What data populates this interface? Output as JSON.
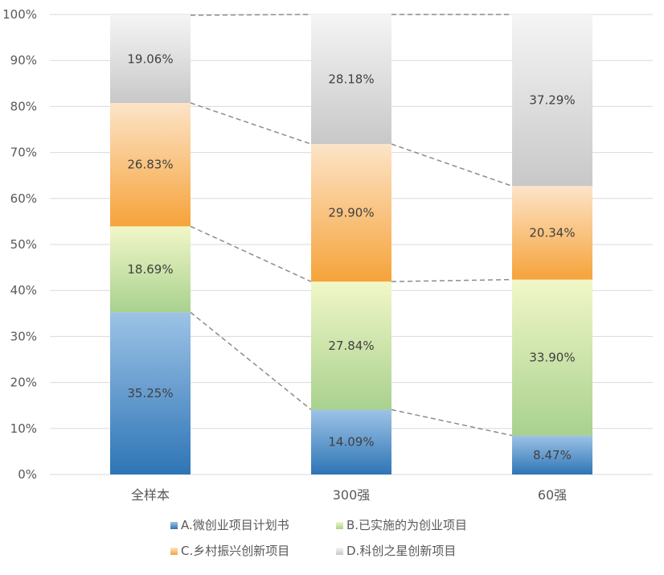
{
  "chart_data": {
    "type": "bar",
    "stacked": true,
    "percent": true,
    "categories": [
      "全样本",
      "300强",
      "60强"
    ],
    "series": [
      {
        "name": "A.微创业项目计划书",
        "values": [
          35.25,
          14.09,
          8.47
        ],
        "labels": [
          "35.25%",
          "14.09%",
          "8.47%"
        ],
        "color_light": "#9dc3e6",
        "color_dark": "#2e75b6"
      },
      {
        "name": "B.已实施的为创业项目",
        "values": [
          18.69,
          27.84,
          33.9
        ],
        "labels": [
          "18.69%",
          "27.84%",
          "33.90%"
        ],
        "color_light": "#f1f7c8",
        "color_dark": "#a9d18e"
      },
      {
        "name": "C.乡村振兴创新项目",
        "values": [
          26.83,
          29.9,
          20.34
        ],
        "labels": [
          "26.83%",
          "29.90%",
          "20.34%"
        ],
        "color_light": "#fce4c8",
        "color_dark": "#f6a33a"
      },
      {
        "name": "D.科创之星创新项目",
        "values": [
          19.06,
          28.18,
          37.29
        ],
        "labels": [
          "19.06%",
          "28.18%",
          "37.29%"
        ],
        "color_light": "#f5f5f5",
        "color_dark": "#c8c8c8"
      }
    ],
    "yticks": [
      "0%",
      "10%",
      "20%",
      "30%",
      "40%",
      "50%",
      "60%",
      "70%",
      "80%",
      "90%",
      "100%"
    ],
    "ylim": [
      0,
      100
    ],
    "grid": true,
    "legend_position": "bottom",
    "series_lines": true
  }
}
